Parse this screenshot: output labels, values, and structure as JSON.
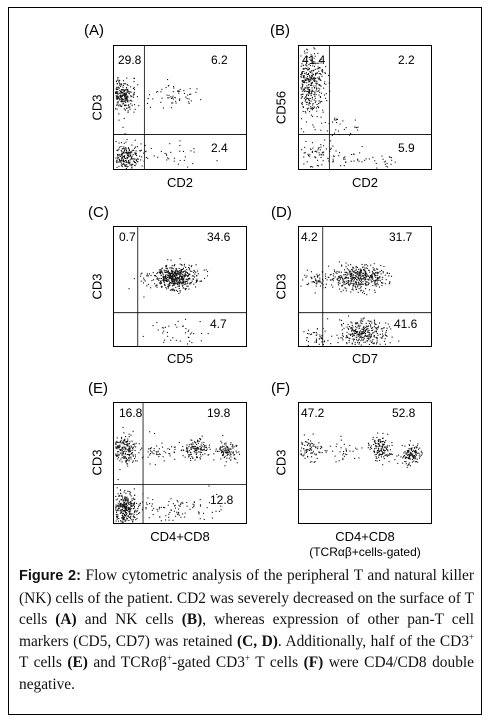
{
  "panels": [
    {
      "label": "(A)",
      "ylabel": "CD3",
      "xlabel": "CD2",
      "q": {
        "ul": "29.8",
        "ur": "6.2",
        "lr": "2.4"
      }
    },
    {
      "label": "(B)",
      "ylabel": "CD56",
      "xlabel": "CD2",
      "q": {
        "ul": "41.4",
        "ur": "2.2",
        "lr": "5.9"
      }
    },
    {
      "label": "(C)",
      "ylabel": "CD3",
      "xlabel": "CD5",
      "q": {
        "ul": "0.7",
        "ur": "34.6",
        "lr": "4.7"
      }
    },
    {
      "label": "(D)",
      "ylabel": "CD3",
      "xlabel": "CD7",
      "q": {
        "ul": "4.2",
        "ur": "31.7",
        "lr": "41.6"
      }
    },
    {
      "label": "(E)",
      "ylabel": "CD3",
      "xlabel": "CD4+CD8",
      "q": {
        "ul": "16.8",
        "ur": "19.8",
        "lr": "12.8"
      }
    },
    {
      "label": "(F)",
      "ylabel": "CD3",
      "xlabel": "CD4+CD8",
      "xsub": "(TCRαβ+cells-gated)",
      "q": {
        "ul": "47.2",
        "ur": "52.8"
      }
    }
  ],
  "caption": {
    "figure_label": "Figure 2:",
    "t1": " Flow cytometric analysis of the peripheral T and natural killer (NK) cells of the patient. CD2 was severely decreased on the surface of T cells ",
    "a": "(A)",
    "t2": " and NK cells ",
    "b": "(B)",
    "t3": ", whereas expression of other pan-T cell markers (CD5, CD7) was retained ",
    "cd": "(C, D)",
    "t4": ". Additionally, half of the CD3",
    "plus1": "+",
    "t5": " T cells ",
    "e": "(E)",
    "t6": " and TCRσβ",
    "plus2": "+",
    "t7": "-gated CD3",
    "plus3": "+",
    "t8": " T cells ",
    "f": "(F)",
    "t9": " were CD4/CD8 double negative."
  }
}
